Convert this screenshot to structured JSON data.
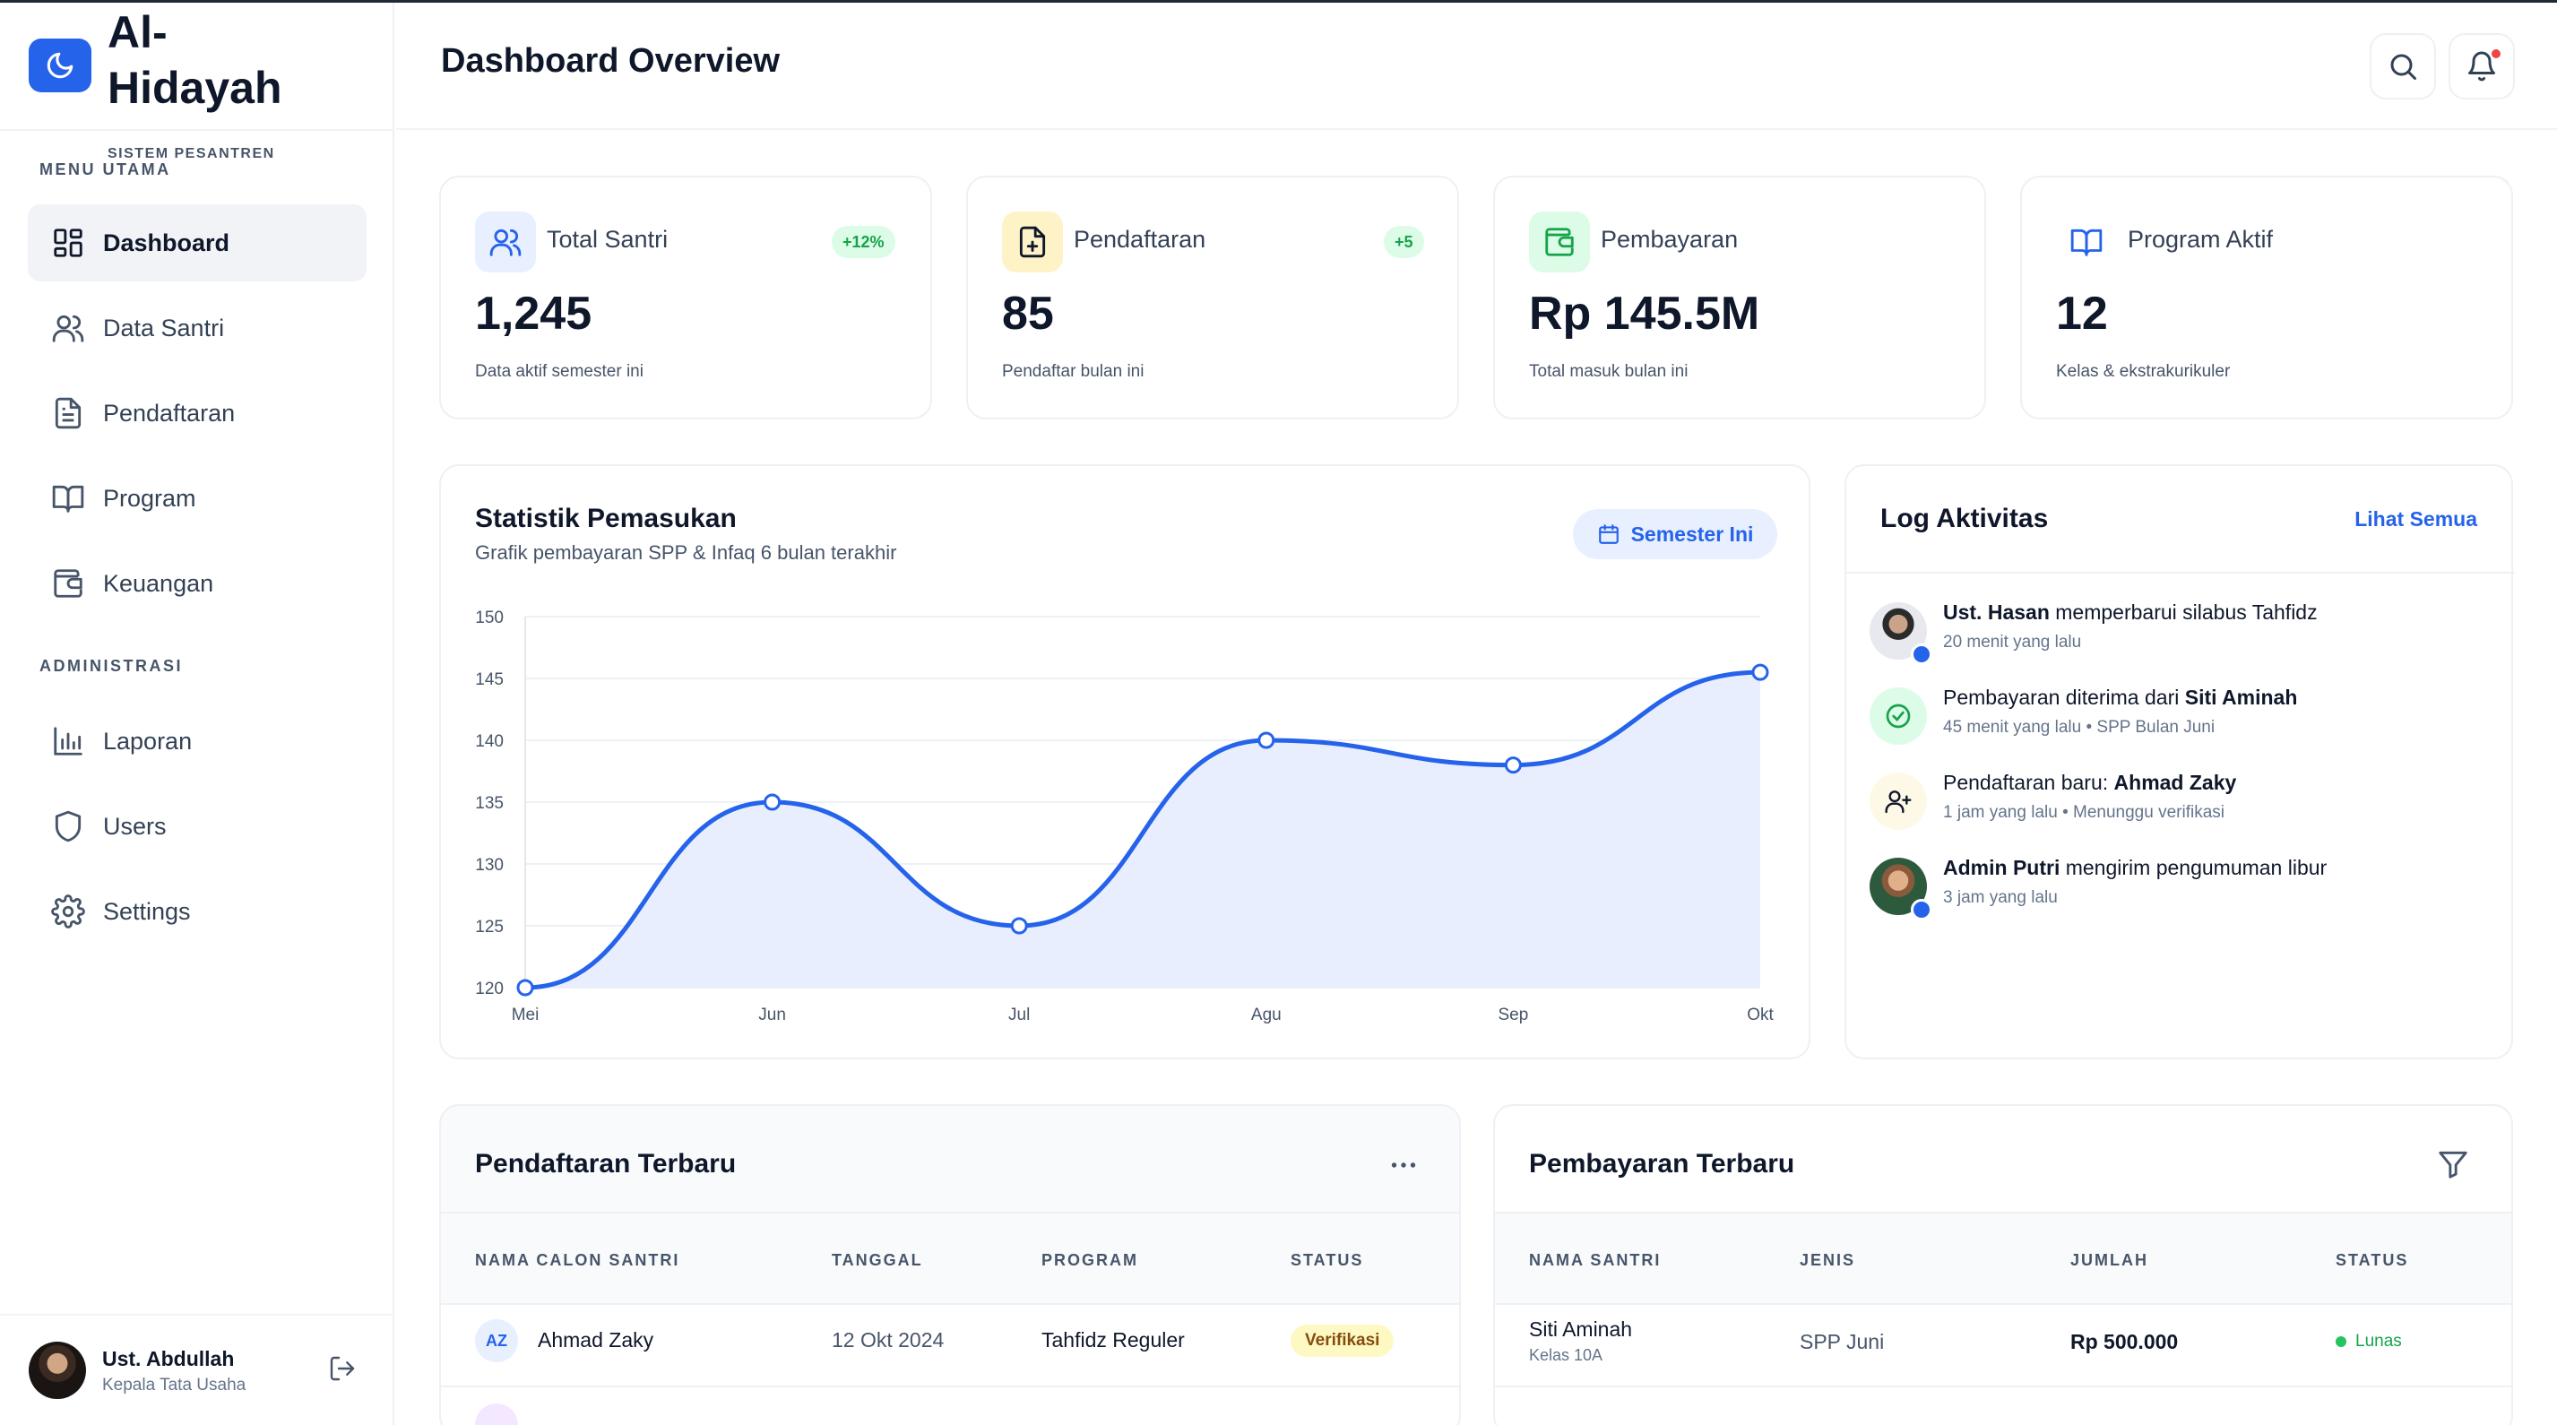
{
  "brand": {
    "title": "Al-Hidayah",
    "subtitle": "SISTEM PESANTREN"
  },
  "sidebar": {
    "section_main": "MENU UTAMA",
    "section_admin": "ADMINISTRASI",
    "items": [
      {
        "label": "Dashboard",
        "icon": "grid-icon",
        "active": true
      },
      {
        "label": "Data Santri",
        "icon": "users-icon"
      },
      {
        "label": "Pendaftaran",
        "icon": "document-icon"
      },
      {
        "label": "Program",
        "icon": "book-icon"
      },
      {
        "label": "Keuangan",
        "icon": "wallet-icon"
      },
      {
        "label": "Laporan",
        "icon": "bar-chart-icon"
      },
      {
        "label": "Users",
        "icon": "shield-icon"
      },
      {
        "label": "Settings",
        "icon": "gear-icon"
      }
    ],
    "user": {
      "name": "Ust. Abdullah",
      "role": "Kepala Tata Usaha"
    }
  },
  "header": {
    "title": "Dashboard Overview"
  },
  "stats": [
    {
      "label": "Total Santri",
      "badge": "+12%",
      "value": "1,245",
      "desc": "Data aktif semester ini",
      "icon": "users-icon",
      "color": "#2563eb"
    },
    {
      "label": "Pendaftaran",
      "badge": "+5",
      "value": "85",
      "desc": "Pendaftar bulan ini",
      "icon": "file-plus-icon",
      "color": "#d97706"
    },
    {
      "label": "Pembayaran",
      "badge": "",
      "value": "Rp 145.5M",
      "desc": "Total masuk bulan ini",
      "icon": "wallet-icon",
      "color": "#16a34a"
    },
    {
      "label": "Program Aktif",
      "badge": "",
      "value": "12",
      "desc": "Kelas & ekstrakurikuler",
      "icon": "book-icon",
      "color": "#2563eb"
    }
  ],
  "chart": {
    "title": "Statistik Pemasukan",
    "subtitle": "Grafik pembayaran SPP & Infaq 6 bulan terakhir",
    "filter_label": "Semester Ini"
  },
  "chart_data": {
    "type": "area",
    "categories": [
      "Mei",
      "Jun",
      "Jul",
      "Agu",
      "Sep",
      "Okt"
    ],
    "values": [
      120,
      135,
      125,
      140,
      138,
      145.5
    ],
    "yticks": [
      120,
      125,
      130,
      135,
      140,
      145,
      150
    ],
    "ylim": [
      120,
      150
    ],
    "grid": true,
    "color": "#2563eb"
  },
  "log": {
    "title": "Log Aktivitas",
    "link": "Lihat Semua",
    "items": [
      {
        "bold": "Ust. Hasan",
        "text": " memperbarui silabus Tahfidz",
        "meta": "20 menit yang lalu",
        "kind": "photo"
      },
      {
        "text": "Pembayaran diterima dari ",
        "bold_after": "Siti Aminah",
        "meta": "45 menit yang lalu • SPP Bulan Juni",
        "kind": "check-icon"
      },
      {
        "text": "Pendaftaran baru: ",
        "bold_after": "Ahmad Zaky",
        "meta": "1 jam yang lalu • Menunggu verifikasi",
        "kind": "user-plus-icon"
      },
      {
        "bold": "Admin Putri",
        "text": " mengirim pengumuman libur",
        "meta": "3 jam yang lalu",
        "kind": "photo"
      }
    ]
  },
  "pendaftaran": {
    "title": "Pendaftaran Terbaru",
    "headers": [
      "NAMA CALON SANTRI",
      "TANGGAL",
      "PROGRAM",
      "STATUS"
    ],
    "rows": [
      {
        "initials": "AZ",
        "name": "Ahmad Zaky",
        "date": "12 Okt 2024",
        "program": "Tahfidz Reguler",
        "status": "Verifikasi"
      }
    ]
  },
  "pembayaran": {
    "title": "Pembayaran Terbaru",
    "headers": [
      "NAMA SANTRI",
      "JENIS",
      "JUMLAH",
      "STATUS"
    ],
    "rows": [
      {
        "name": "Siti Aminah",
        "class": "Kelas 10A",
        "type": "SPP Juni",
        "amount": "Rp 500.000",
        "status": "Lunas"
      }
    ]
  }
}
